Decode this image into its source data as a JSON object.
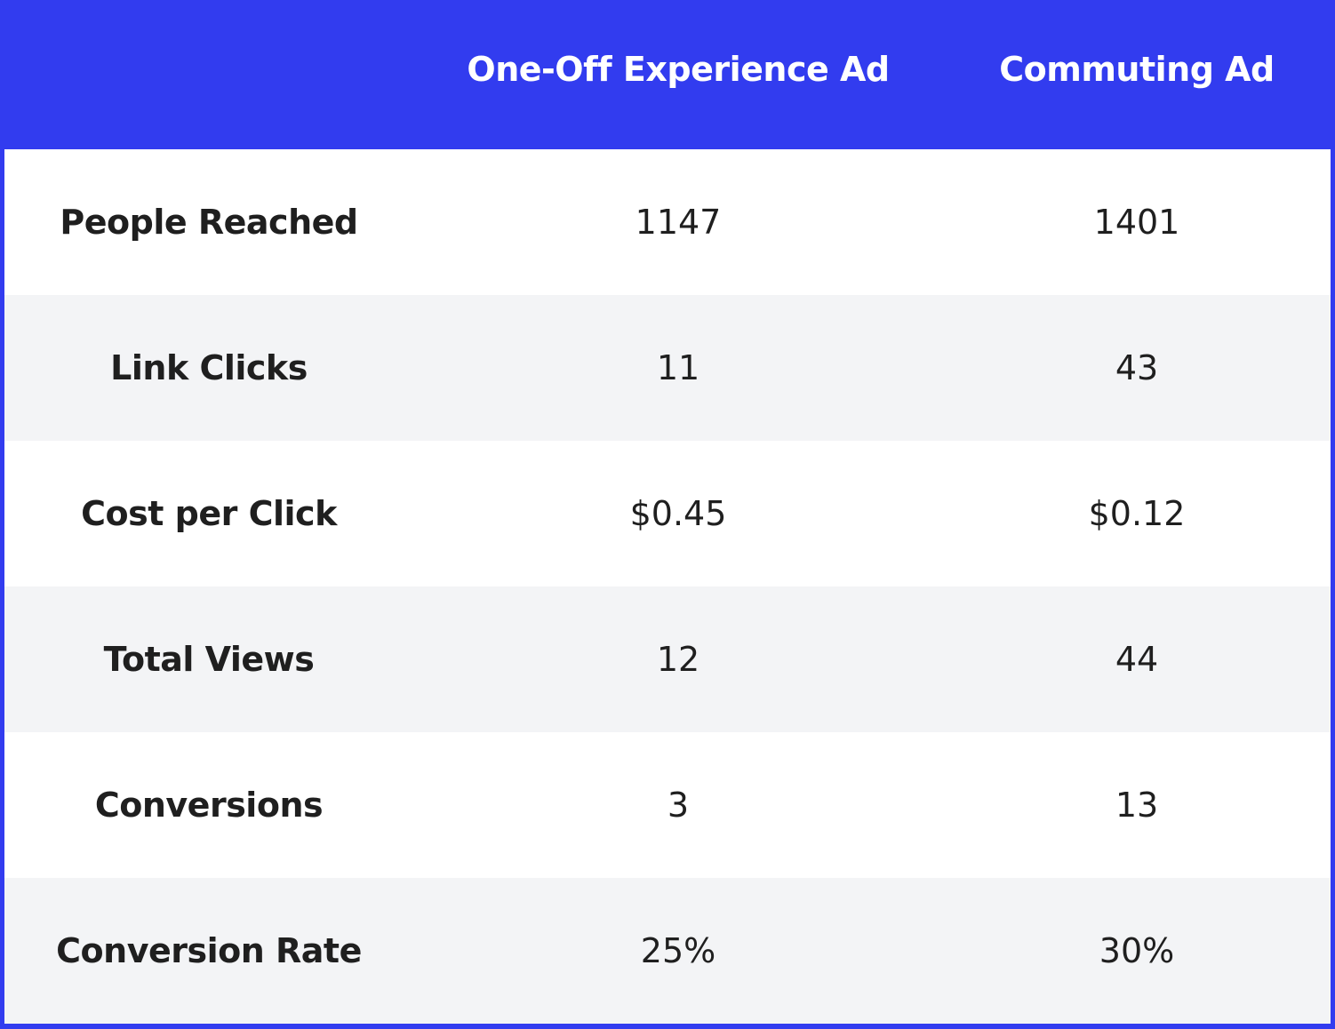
{
  "header": {
    "corner": "",
    "columns": [
      "One-Off Experience Ad",
      "Commuting Ad"
    ]
  },
  "rows": [
    {
      "label": "People Reached",
      "values": [
        "1147",
        "1401"
      ]
    },
    {
      "label": "Link Clicks",
      "values": [
        "11",
        "43"
      ]
    },
    {
      "label": "Cost per Click",
      "values": [
        "$0.45",
        "$0.12"
      ]
    },
    {
      "label": "Total Views",
      "values": [
        "12",
        "44"
      ]
    },
    {
      "label": "Conversions",
      "values": [
        "3",
        "13"
      ]
    },
    {
      "label": "Conversion Rate",
      "values": [
        "25%",
        "30%"
      ]
    }
  ],
  "colors": {
    "header_bg": "#323cef",
    "header_text": "#ffffff",
    "row_alt_bg": "#f3f4f6",
    "row_bg": "#ffffff",
    "body_text": "#1f1f1f"
  }
}
